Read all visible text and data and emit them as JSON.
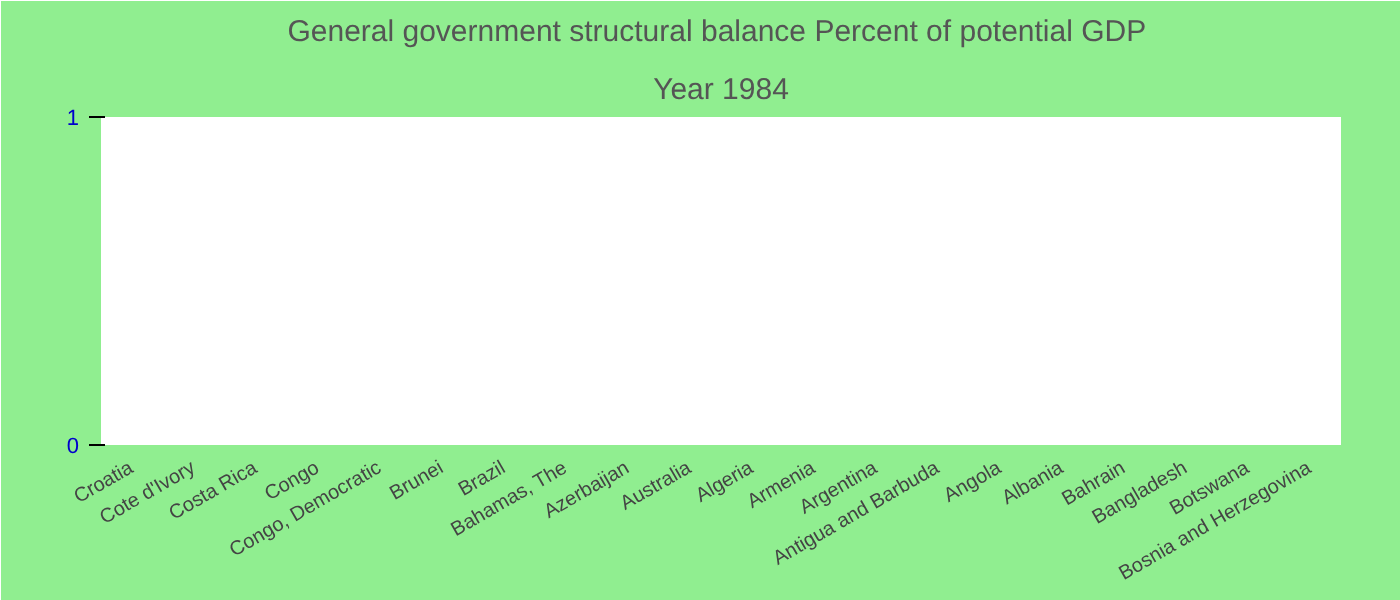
{
  "chart_data": {
    "type": "bar",
    "title": "General government structural balance  Percent of potential GDP",
    "subtitle": "Year 1984",
    "categories": [
      "Croatia",
      "Cote d'Ivory",
      "Costa Rica",
      "Congo",
      "Congo, Democratic",
      "Brunei",
      "Brazil",
      "Bahamas, The",
      "Azerbaijan",
      "Australia",
      "Algeria",
      "Armenia",
      "Argentina",
      "Antigua and Barbuda",
      "Angola",
      "Albania",
      "Bahrain",
      "Bangladesh",
      "Botswana",
      "Bosnia and Herzegovina"
    ],
    "values": [
      null,
      null,
      null,
      null,
      null,
      null,
      null,
      null,
      null,
      null,
      null,
      null,
      null,
      null,
      null,
      null,
      null,
      null,
      null,
      null
    ],
    "ylim": [
      0,
      1
    ],
    "yticks": [
      0,
      1
    ],
    "grid": false
  }
}
